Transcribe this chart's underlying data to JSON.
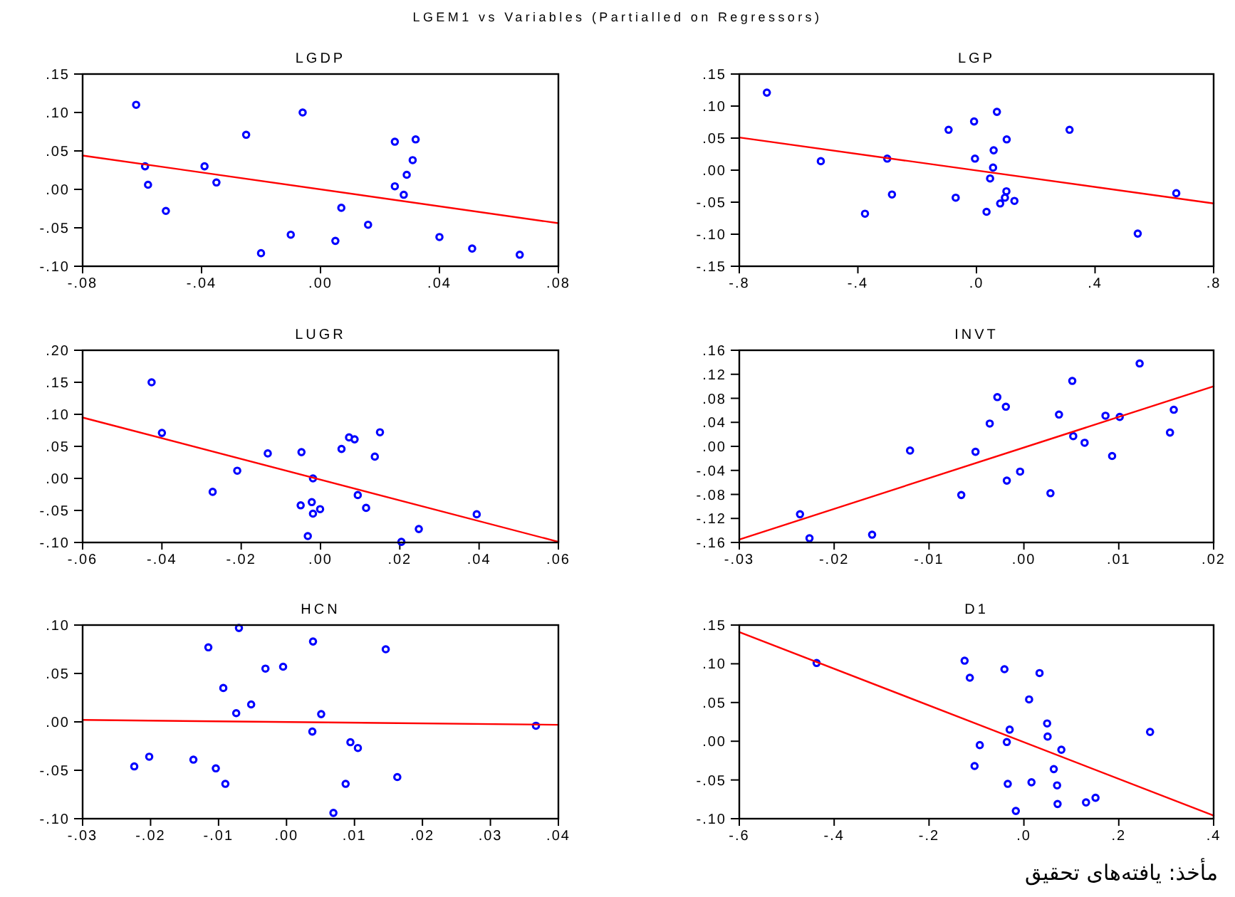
{
  "chart_data": [
    {
      "type": "scatter",
      "title": "LGDP",
      "annotations": [
        "LGEM1 vs Variables (Partialled on Regressors)"
      ],
      "xlim": [
        -0.08,
        0.08
      ],
      "xticks": [
        {
          "value": -0.08,
          "label": "-.08"
        },
        {
          "value": -0.04,
          "label": "-.04"
        },
        {
          "value": 0,
          "label": ".00"
        },
        {
          "value": 0.04,
          "label": ".04"
        },
        {
          "value": 0.08,
          "label": ".08"
        }
      ],
      "ylim": [
        -0.1,
        0.15
      ],
      "yticks": [
        {
          "value": -0.1,
          "label": "-.10"
        },
        {
          "value": -0.05,
          "label": "-.05"
        },
        {
          "value": 0,
          "label": ".00"
        },
        {
          "value": 0.05,
          "label": ".05"
        },
        {
          "value": 0.1,
          "label": ".10"
        },
        {
          "value": 0.15,
          "label": ".15"
        }
      ],
      "series": [
        {
          "marker": "circle",
          "color": "#0000ff",
          "x": [
            -0.062,
            -0.059,
            -0.058,
            -0.052,
            -0.039,
            -0.035,
            -0.025,
            -0.02,
            -0.01,
            -0.006,
            0.005,
            0.007,
            0.016,
            0.025,
            0.025,
            0.028,
            0.029,
            0.031,
            0.032,
            0.04,
            0.051,
            0.067
          ],
          "values": [
            0.11,
            0.03,
            0.006,
            -0.028,
            0.03,
            0.009,
            0.071,
            -0.083,
            -0.059,
            0.1,
            -0.067,
            -0.024,
            -0.046,
            0.004,
            0.062,
            -0.007,
            0.019,
            0.038,
            0.065,
            -0.062,
            -0.077,
            -0.085
          ]
        },
        {
          "type": "line",
          "color": "#ff0000",
          "x": [
            -0.08,
            0.08
          ],
          "values": [
            0.044,
            -0.044
          ]
        }
      ]
    },
    {
      "type": "scatter",
      "title": "LGP",
      "xlim": [
        -0.8,
        0.8
      ],
      "xticks": [
        {
          "value": -0.8,
          "label": "-.8"
        },
        {
          "value": -0.4,
          "label": "-.4"
        },
        {
          "value": 0,
          "label": ".0"
        },
        {
          "value": 0.4,
          "label": ".4"
        },
        {
          "value": 0.8,
          "label": ".8"
        }
      ],
      "ylim": [
        -0.15,
        0.15
      ],
      "yticks": [
        {
          "value": -0.15,
          "label": "-.15"
        },
        {
          "value": -0.1,
          "label": "-.10"
        },
        {
          "value": -0.05,
          "label": "-.05"
        },
        {
          "value": 0,
          "label": ".00"
        },
        {
          "value": 0.05,
          "label": ".05"
        },
        {
          "value": 0.1,
          "label": ".10"
        },
        {
          "value": 0.15,
          "label": ".15"
        }
      ],
      "series": [
        {
          "marker": "circle",
          "color": "#0000ff",
          "x": [
            -0.707,
            -0.525,
            -0.376,
            -0.301,
            -0.285,
            -0.094,
            -0.07,
            -0.008,
            -0.005,
            0.034,
            0.046,
            0.056,
            0.058,
            0.069,
            0.08,
            0.096,
            0.101,
            0.102,
            0.128,
            0.314,
            0.544,
            0.674
          ],
          "values": [
            0.121,
            0.014,
            -0.068,
            0.018,
            -0.038,
            0.063,
            -0.043,
            0.076,
            0.018,
            -0.065,
            -0.013,
            0.004,
            0.031,
            0.091,
            -0.052,
            -0.043,
            -0.033,
            0.048,
            -0.048,
            0.063,
            -0.099,
            -0.036
          ]
        },
        {
          "type": "line",
          "color": "#ff0000",
          "x": [
            -0.8,
            0.8
          ],
          "values": [
            0.051,
            -0.052
          ]
        }
      ]
    },
    {
      "type": "scatter",
      "title": "LUGR",
      "xlim": [
        -0.06,
        0.06
      ],
      "xticks": [
        {
          "value": -0.06,
          "label": "-.06"
        },
        {
          "value": -0.04,
          "label": "-.04"
        },
        {
          "value": -0.02,
          "label": "-.02"
        },
        {
          "value": 0,
          "label": ".00"
        },
        {
          "value": 0.02,
          "label": ".02"
        },
        {
          "value": 0.04,
          "label": ".04"
        },
        {
          "value": 0.06,
          "label": ".06"
        }
      ],
      "ylim": [
        -0.1,
        0.2
      ],
      "yticks": [
        {
          "value": -0.1,
          "label": "-.10"
        },
        {
          "value": -0.05,
          "label": "-.05"
        },
        {
          "value": 0,
          "label": ".00"
        },
        {
          "value": 0.05,
          "label": ".05"
        },
        {
          "value": 0.1,
          "label": ".10"
        },
        {
          "value": 0.15,
          "label": ".15"
        },
        {
          "value": 0.2,
          "label": ".20"
        }
      ],
      "series": [
        {
          "marker": "circle",
          "color": "#0000ff",
          "x": [
            -0.0426,
            -0.04,
            -0.0272,
            -0.021,
            -0.0133,
            -0.005,
            -0.0048,
            -0.0032,
            -0.0022,
            -0.0019,
            -0.0019,
            -0.0001,
            0.0053,
            0.0072,
            0.0086,
            0.0094,
            0.0115,
            0.0137,
            0.015,
            0.0204,
            0.0248,
            0.0394
          ],
          "values": [
            0.15,
            0.071,
            -0.021,
            0.012,
            0.039,
            -0.042,
            0.041,
            -0.09,
            -0.037,
            0.0,
            -0.055,
            -0.048,
            0.046,
            0.064,
            0.061,
            -0.026,
            -0.046,
            0.034,
            0.072,
            -0.099,
            -0.079,
            -0.056
          ]
        },
        {
          "type": "line",
          "color": "#ff0000",
          "x": [
            -0.06,
            0.06
          ],
          "values": [
            0.095,
            -0.099
          ]
        }
      ]
    },
    {
      "type": "scatter",
      "title": "INVT",
      "xlim": [
        -0.03,
        0.02
      ],
      "xticks": [
        {
          "value": -0.03,
          "label": "-.03"
        },
        {
          "value": -0.02,
          "label": "-.02"
        },
        {
          "value": -0.01,
          "label": "-.01"
        },
        {
          "value": 0,
          "label": ".00"
        },
        {
          "value": 0.01,
          "label": ".01"
        },
        {
          "value": 0.02,
          "label": ".02"
        }
      ],
      "ylim": [
        -0.16,
        0.16
      ],
      "yticks": [
        {
          "value": -0.16,
          "label": "-.16"
        },
        {
          "value": -0.12,
          "label": "-.12"
        },
        {
          "value": -0.08,
          "label": "-.08"
        },
        {
          "value": -0.04,
          "label": "-.04"
        },
        {
          "value": 0,
          "label": ".00"
        },
        {
          "value": 0.04,
          "label": ".04"
        },
        {
          "value": 0.08,
          "label": ".08"
        },
        {
          "value": 0.12,
          "label": ".12"
        },
        {
          "value": 0.16,
          "label": ".16"
        }
      ],
      "series": [
        {
          "marker": "circle",
          "color": "#0000ff",
          "x": [
            -0.0236,
            -0.0226,
            -0.016,
            -0.012,
            -0.0066,
            -0.0051,
            -0.0036,
            -0.0028,
            -0.0019,
            -0.0018,
            -0.0004,
            0.0028,
            0.0037,
            0.0051,
            0.0052,
            0.0064,
            0.0086,
            0.0093,
            0.0101,
            0.0122,
            0.0154,
            0.0158
          ],
          "values": [
            -0.113,
            -0.153,
            -0.147,
            -0.007,
            -0.081,
            -0.009,
            0.038,
            0.082,
            0.066,
            -0.057,
            -0.042,
            -0.078,
            0.053,
            0.109,
            0.017,
            0.006,
            0.051,
            -0.016,
            0.049,
            0.138,
            0.023,
            0.061
          ]
        },
        {
          "type": "line",
          "color": "#ff0000",
          "x": [
            -0.03,
            0.02
          ],
          "values": [
            -0.155,
            0.1
          ]
        }
      ]
    },
    {
      "type": "scatter",
      "title": "HCN",
      "xlim": [
        -0.03,
        0.04
      ],
      "xticks": [
        {
          "value": -0.03,
          "label": "-.03"
        },
        {
          "value": -0.02,
          "label": "-.02"
        },
        {
          "value": -0.01,
          "label": "-.01"
        },
        {
          "value": 0,
          "label": ".00"
        },
        {
          "value": 0.01,
          "label": ".01"
        },
        {
          "value": 0.02,
          "label": ".02"
        },
        {
          "value": 0.03,
          "label": ".03"
        },
        {
          "value": 0.04,
          "label": ".04"
        }
      ],
      "ylim": [
        -0.1,
        0.1
      ],
      "yticks": [
        {
          "value": -0.1,
          "label": "-.10"
        },
        {
          "value": -0.05,
          "label": "-.05"
        },
        {
          "value": 0,
          "label": ".00"
        },
        {
          "value": 0.05,
          "label": ".05"
        },
        {
          "value": 0.1,
          "label": ".10"
        }
      ],
      "series": [
        {
          "marker": "circle",
          "color": "#0000ff",
          "x": [
            -0.0224,
            -0.0202,
            -0.0137,
            -0.0115,
            -0.0104,
            -0.0093,
            -0.009,
            -0.0074,
            -0.007,
            -0.0052,
            -0.0031,
            -0.0005,
            0.0038,
            0.0039,
            0.0051,
            0.0069,
            0.0087,
            0.0094,
            0.0105,
            0.0146,
            0.0163,
            0.0367
          ],
          "values": [
            -0.046,
            -0.036,
            -0.039,
            0.077,
            -0.048,
            0.035,
            -0.064,
            0.009,
            0.097,
            0.018,
            0.055,
            0.057,
            -0.01,
            0.083,
            0.008,
            -0.094,
            -0.064,
            -0.021,
            -0.027,
            0.075,
            -0.057,
            -0.004
          ]
        },
        {
          "type": "line",
          "color": "#ff0000",
          "x": [
            -0.03,
            0.04
          ],
          "values": [
            0.002,
            -0.003
          ]
        }
      ]
    },
    {
      "type": "scatter",
      "title": "D1",
      "annotations": [
        "مأخذ: یافته‌های تحقیق"
      ],
      "xlim": [
        -0.6,
        0.4
      ],
      "xticks": [
        {
          "value": -0.6,
          "label": "-.6"
        },
        {
          "value": -0.4,
          "label": "-.4"
        },
        {
          "value": -0.2,
          "label": "-.2"
        },
        {
          "value": 0,
          "label": ".0"
        },
        {
          "value": 0.2,
          "label": ".2"
        },
        {
          "value": 0.4,
          "label": ".4"
        }
      ],
      "ylim": [
        -0.1,
        0.15
      ],
      "yticks": [
        {
          "value": -0.1,
          "label": "-.10"
        },
        {
          "value": -0.05,
          "label": "-.05"
        },
        {
          "value": 0,
          "label": ".00"
        },
        {
          "value": 0.05,
          "label": ".05"
        },
        {
          "value": 0.1,
          "label": ".10"
        },
        {
          "value": 0.15,
          "label": ".15"
        }
      ],
      "series": [
        {
          "marker": "circle",
          "color": "#0000ff",
          "x": [
            -0.437,
            -0.125,
            -0.114,
            -0.104,
            -0.093,
            -0.041,
            -0.036,
            -0.034,
            -0.03,
            -0.017,
            0.011,
            0.016,
            0.033,
            0.049,
            0.05,
            0.063,
            0.07,
            0.071,
            0.079,
            0.131,
            0.151,
            0.266
          ],
          "values": [
            0.101,
            0.104,
            0.082,
            -0.032,
            -0.005,
            0.093,
            -0.001,
            -0.055,
            0.015,
            -0.09,
            0.054,
            -0.053,
            0.088,
            0.023,
            0.006,
            -0.036,
            -0.057,
            -0.081,
            -0.011,
            -0.079,
            -0.073,
            0.012
          ]
        },
        {
          "type": "line",
          "color": "#ff0000",
          "x": [
            -0.6,
            0.4
          ],
          "values": [
            0.141,
            -0.096
          ]
        }
      ]
    }
  ]
}
